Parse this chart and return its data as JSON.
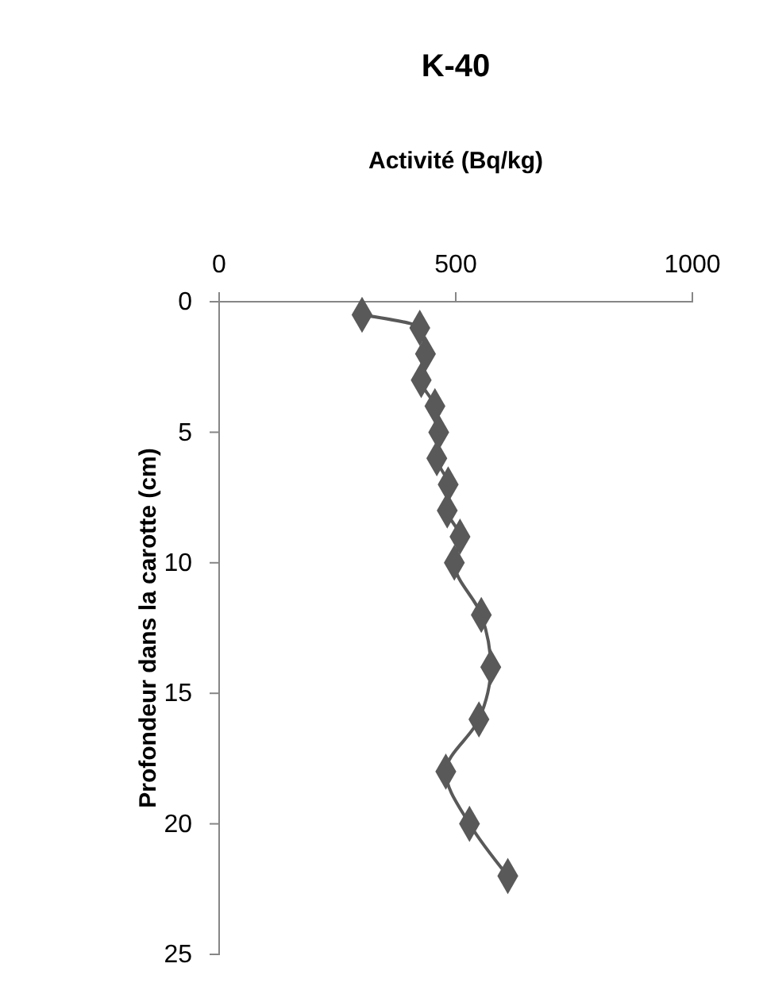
{
  "chart_data": {
    "type": "line",
    "title": "K-40",
    "xlabel": "Activité (Bq/kg)",
    "ylabel": "Profondeur dans la carotte (cm)",
    "xlim": [
      0,
      1000
    ],
    "xticks": [
      0,
      500,
      1000
    ],
    "ylim": [
      25,
      0
    ],
    "yticks": [
      0,
      5,
      10,
      15,
      20,
      25
    ],
    "marker": "diamond",
    "grid": false,
    "series": [
      {
        "color": "#595959",
        "x": [
          302,
          424,
          436,
          427,
          456,
          464,
          460,
          484,
          482,
          509,
          497,
          554,
          574,
          549,
          479,
          529,
          610
        ],
        "values": [
          0.5,
          1,
          2,
          3,
          4,
          5,
          6,
          7,
          8,
          9,
          10,
          12,
          14,
          16,
          18,
          20,
          22
        ]
      }
    ]
  }
}
